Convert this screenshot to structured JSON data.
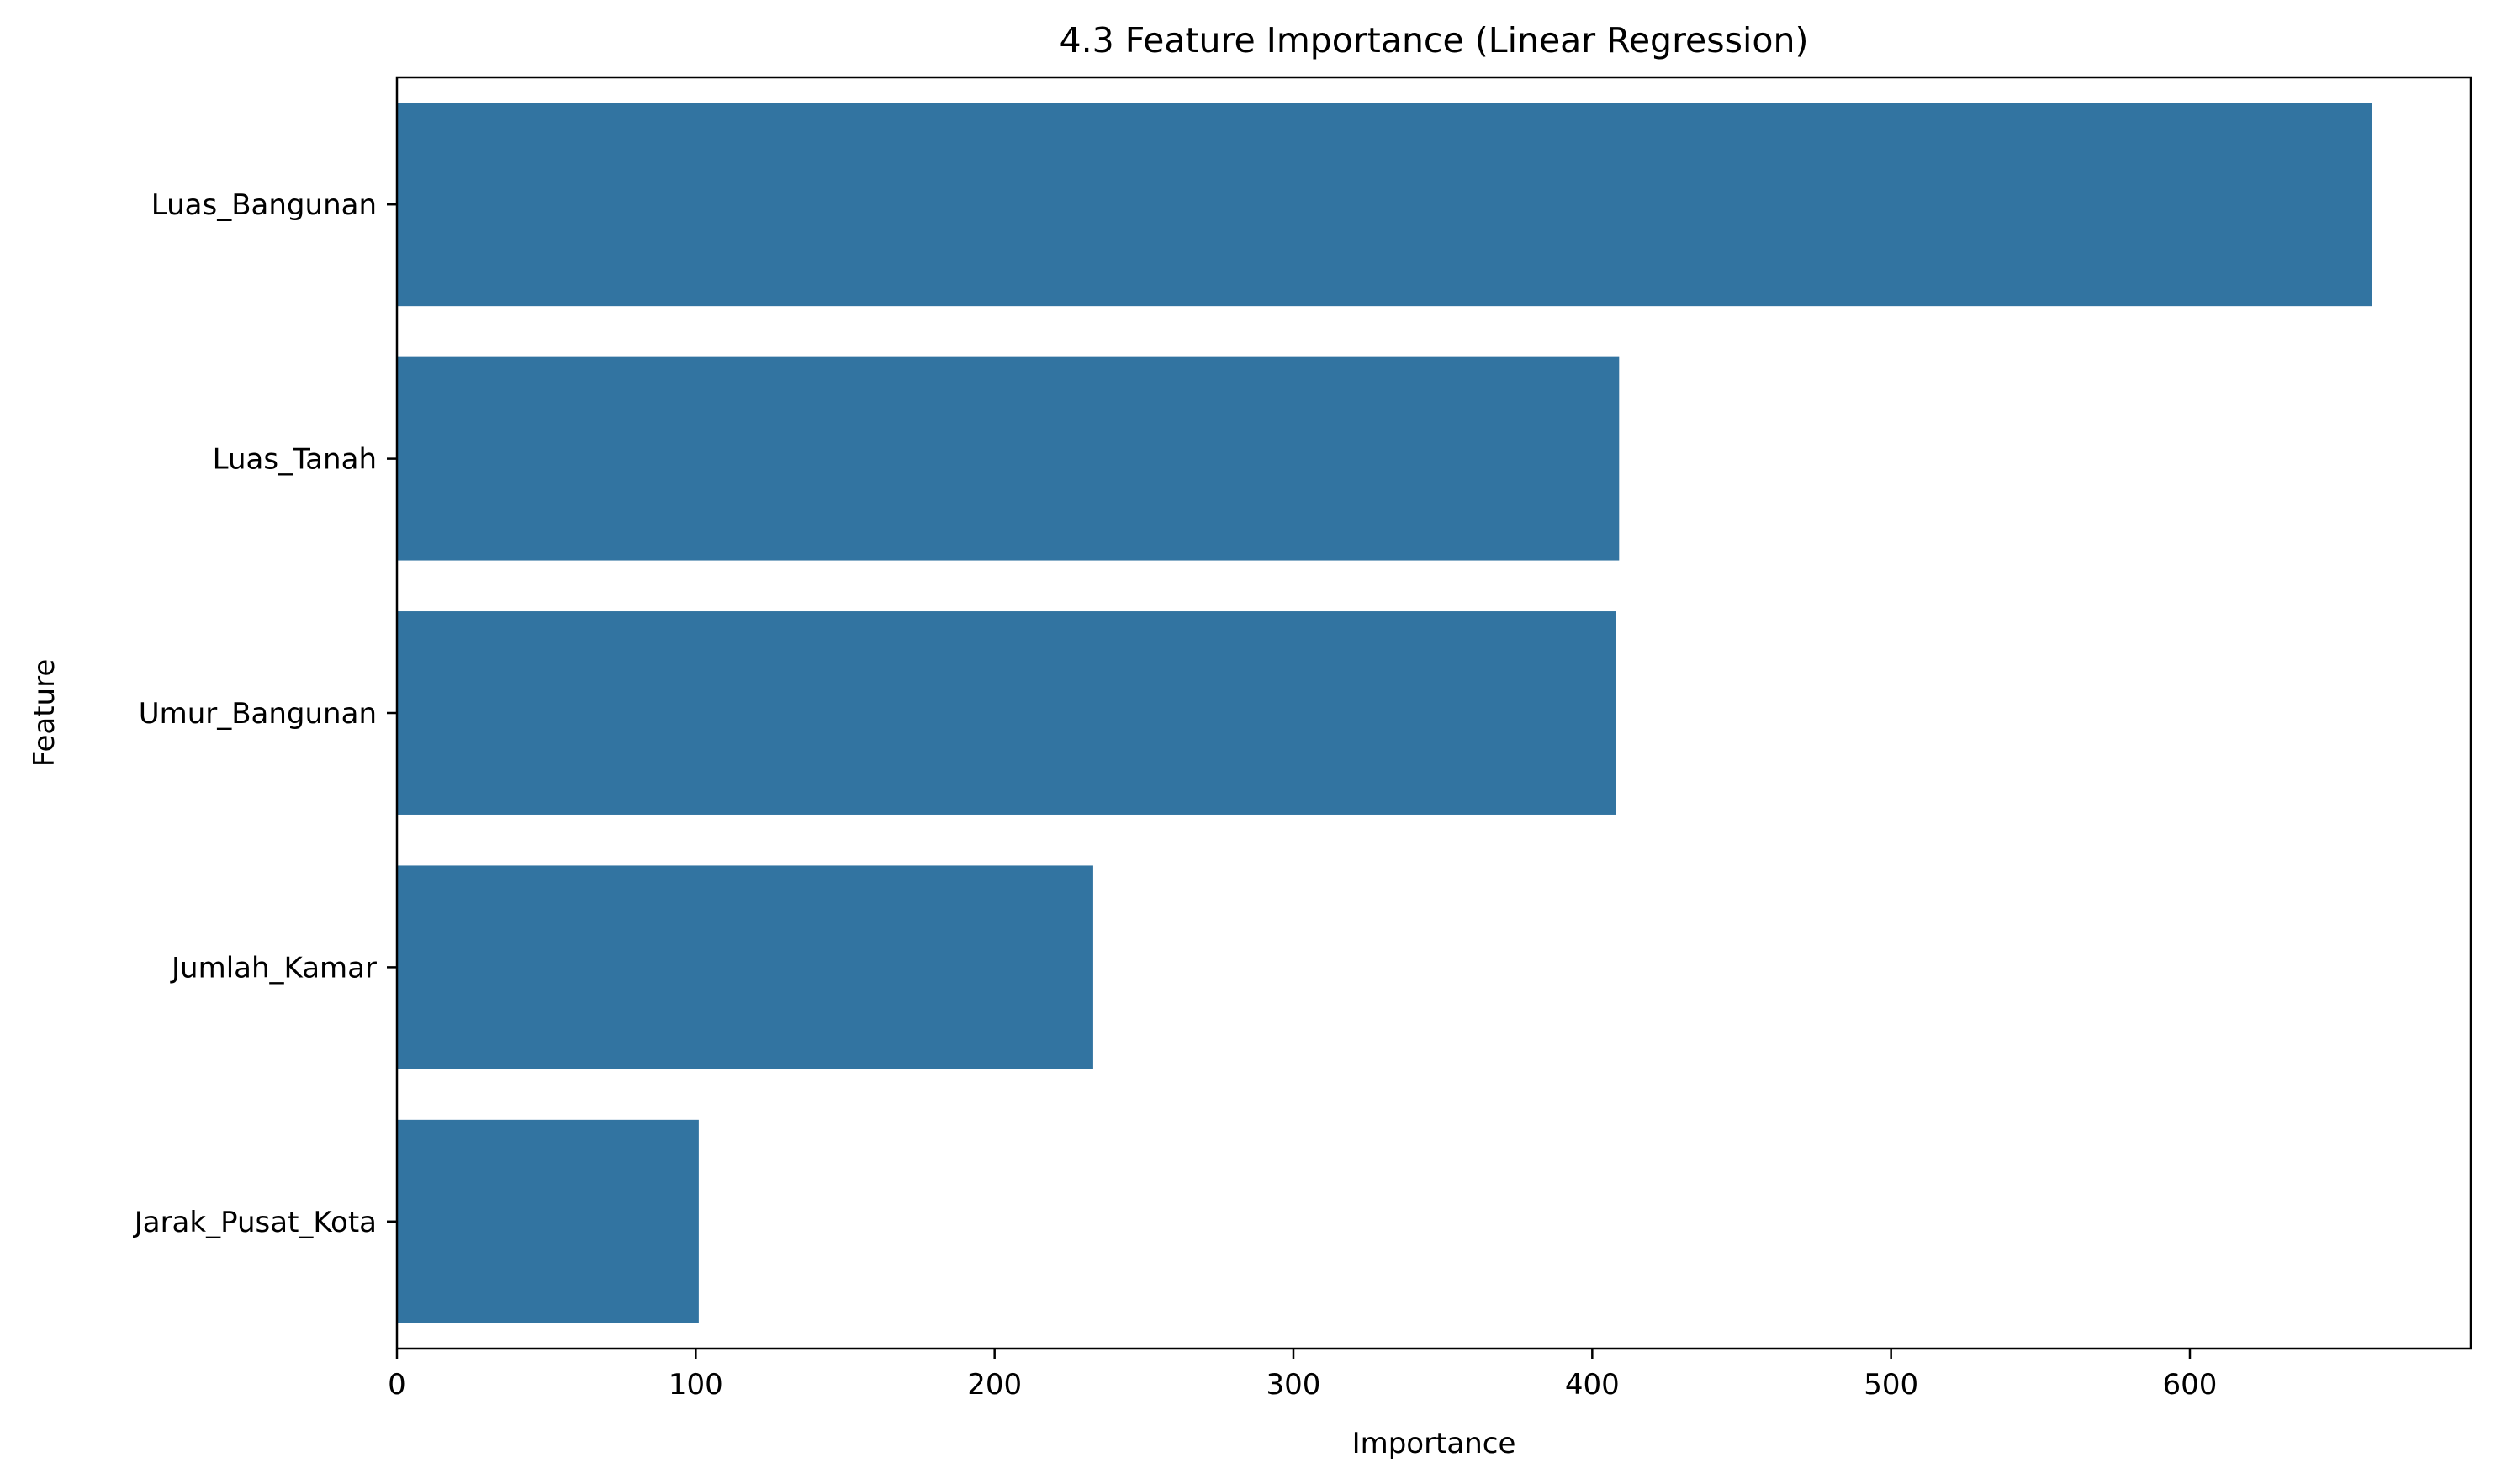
{
  "chart_data": {
    "type": "bar",
    "orientation": "horizontal",
    "title": "4.3 Feature Importance (Linear Regression)",
    "xlabel": "Importance",
    "ylabel": "Feature",
    "categories": [
      "Luas_Bangunan",
      "Luas_Tanah",
      "Umur_Bangunan",
      "Jumlah_Kamar",
      "Jarak_Pusat_Kota"
    ],
    "values": [
      661,
      409,
      408,
      233,
      101
    ],
    "xlim": [
      0,
      694
    ],
    "xticks": [
      0,
      100,
      200,
      300,
      400,
      500,
      600
    ],
    "grid": false,
    "bar_color": "#3274a1"
  }
}
